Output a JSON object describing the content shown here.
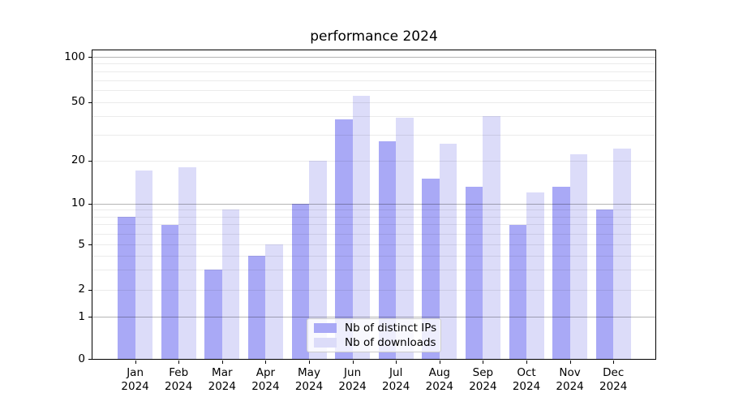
{
  "chart_data": {
    "type": "bar",
    "title": "performance 2024",
    "categories": [
      "Jan",
      "Feb",
      "Mar",
      "Apr",
      "May",
      "Jun",
      "Jul",
      "Aug",
      "Sep",
      "Oct",
      "Nov",
      "Dec"
    ],
    "x_tick_second_line": "2024",
    "series": [
      {
        "name": "Nb of distinct IPs",
        "color": "#a9a9f6",
        "values": [
          8,
          7,
          3,
          4,
          10,
          38,
          27,
          15,
          13,
          7,
          13,
          9
        ]
      },
      {
        "name": "Nb of downloads",
        "color": "#dcdcf9",
        "values": [
          17,
          18,
          9,
          5,
          20,
          55,
          39,
          26,
          40,
          12,
          22,
          24
        ]
      }
    ],
    "y_axis": {
      "scale": "symlog",
      "tick_values": [
        0,
        1,
        2,
        5,
        10,
        20,
        50,
        100
      ],
      "tick_labels": [
        "0",
        "1",
        "2",
        "5",
        "10",
        "20",
        "50",
        "100"
      ],
      "range": [
        0,
        110
      ]
    },
    "gridlines": {
      "major": [
        1,
        10,
        100
      ],
      "minor": [
        2,
        3,
        4,
        5,
        6,
        7,
        8,
        9,
        20,
        30,
        40,
        50,
        60,
        70,
        80,
        90
      ]
    },
    "legend": {
      "entries": [
        "Nb of distinct IPs",
        "Nb of downloads"
      ],
      "location": "lower center"
    },
    "xlabel": "",
    "ylabel": ""
  }
}
